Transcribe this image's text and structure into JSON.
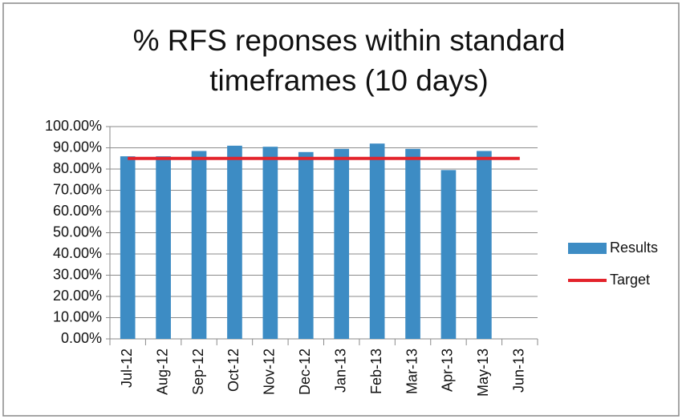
{
  "chart_data": {
    "type": "bar",
    "title": "% RFS reponses within standard timeframes (10 days)",
    "categories": [
      "Jul-12",
      "Aug-12",
      "Sep-12",
      "Oct-12",
      "Nov-12",
      "Dec-12",
      "Jan-13",
      "Feb-13",
      "Mar-13",
      "Apr-13",
      "May-13",
      "Jun-13"
    ],
    "series": [
      {
        "name": "Results",
        "type": "bar",
        "color": "#3d8cc4",
        "values": [
          86,
          86,
          88.5,
          91,
          90.5,
          88,
          89.5,
          92,
          89.5,
          79.5,
          88.5,
          null
        ]
      },
      {
        "name": "Target",
        "type": "line",
        "color": "#e3232b",
        "values": [
          85,
          85,
          85,
          85,
          85,
          85,
          85,
          85,
          85,
          85,
          85,
          85
        ]
      }
    ],
    "ylim": [
      0,
      100
    ],
    "yticks": [
      {
        "value": 0,
        "label": "0.00%"
      },
      {
        "value": 10,
        "label": "10.00%"
      },
      {
        "value": 20,
        "label": "20.00%"
      },
      {
        "value": 30,
        "label": "30.00%"
      },
      {
        "value": 40,
        "label": "40.00%"
      },
      {
        "value": 50,
        "label": "50.00%"
      },
      {
        "value": 60,
        "label": "60.00%"
      },
      {
        "value": 70,
        "label": "70.00%"
      },
      {
        "value": 80,
        "label": "80.00%"
      },
      {
        "value": 90,
        "label": "90.00%"
      },
      {
        "value": 100,
        "label": "100.00%"
      }
    ],
    "grid": true,
    "legend": "right"
  }
}
